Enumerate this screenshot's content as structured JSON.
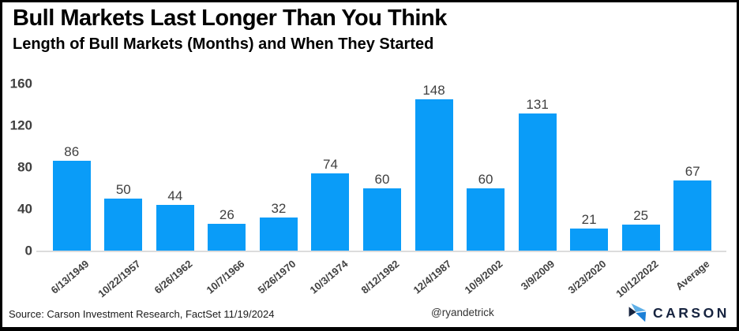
{
  "header": {
    "title": "Bull Markets Last Longer Than You Think",
    "subtitle": "Length of Bull Markets (Months) and When They Started"
  },
  "chart_data": {
    "type": "bar",
    "title": "Bull Markets Last Longer Than You Think",
    "subtitle": "Length of Bull Markets (Months) and When They Started",
    "categories": [
      "6/13/1949",
      "10/22/1957",
      "6/26/1962",
      "10/7/1966",
      "5/26/1970",
      "10/3/1974",
      "8/12/1982",
      "12/4/1987",
      "10/9/2002",
      "3/9/2009",
      "3/23/2020",
      "10/12/2022",
      "Average"
    ],
    "values": [
      86,
      50,
      44,
      26,
      32,
      74,
      60,
      148,
      60,
      131,
      21,
      25,
      67
    ],
    "xlabel": "",
    "ylabel": "",
    "ylim": [
      0,
      160
    ],
    "yticks": [
      0,
      40,
      80,
      120,
      160
    ],
    "grid": false,
    "legend": false,
    "bar_color": "#0a9cf8",
    "tick_label_color": "#404040",
    "value_label_color": "#3f3f3f"
  },
  "footer": {
    "source": "Source: Carson Investment Research, FactSet 11/19/2024",
    "handle": "@ryandetrick",
    "brand_name": "CARSON"
  },
  "brand": {
    "navy": "#16233f",
    "light_blue": "#5fb0e8",
    "mid_blue": "#1b7fd6"
  }
}
